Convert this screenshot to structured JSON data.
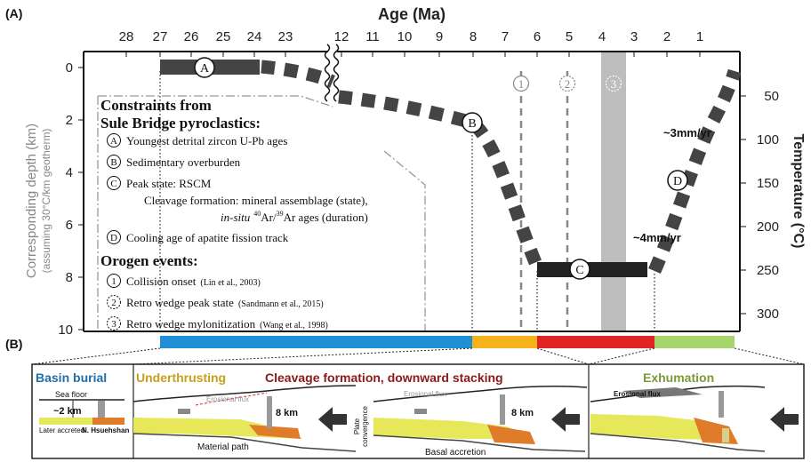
{
  "panel_a": {
    "label": "(A)",
    "top_axis_title": "Age (Ma)",
    "top_ticks_left": [
      "28",
      "27",
      "26",
      "25",
      "24",
      "23"
    ],
    "top_ticks_right": [
      "12",
      "11",
      "10",
      "9",
      "8",
      "7",
      "6",
      "5",
      "4",
      "3",
      "2",
      "1"
    ],
    "left_axis_title_line1": "Corresponding depth (km)",
    "left_axis_title_line2": "(assuming 30°C/km geotherm)",
    "left_ticks": [
      "0",
      "2",
      "4",
      "6",
      "8",
      "10"
    ],
    "right_axis_title": "Temperature (°C)",
    "right_ticks": [
      "50",
      "100",
      "150",
      "200",
      "250",
      "300"
    ],
    "rate_labels": [
      "~3mm/yr",
      "~4mm/yr"
    ],
    "point_labels": [
      "A",
      "B",
      "C",
      "D"
    ],
    "event_markers": [
      "1",
      "2",
      "3"
    ],
    "constraints_title_line1": "Constraints from",
    "constraints_title_line2": "Sule Bridge pyroclastics:",
    "constraints": [
      {
        "id": "A",
        "text": "Youngest detrital zircon U-Pb ages"
      },
      {
        "id": "B",
        "text": "Sedimentary  overburden"
      },
      {
        "id": "C",
        "text": "Peak state: RSCM"
      }
    ],
    "cleavage_line1": "Cleavage formation: mineral assemblage (state),",
    "cleavage_line2_italic": "in-situ",
    "cleavage_line2_rest": "Ar/",
    "cleavage_line2_iso1": "40",
    "cleavage_line2_iso2": "39",
    "cleavage_line2_end": "Ar ages (duration)",
    "constraint_d": {
      "id": "D",
      "text": "Cooling age of apatite fission track"
    },
    "orogen_title": "Orogen events:",
    "orogen_events": [
      {
        "id": "1",
        "text": "Collision onset",
        "ref": "(Lin et al., 2003)"
      },
      {
        "id": "2",
        "text": "Retro wedge peak state",
        "ref": "(Sandmann et al., 2015)"
      },
      {
        "id": "3",
        "text": "Retro wedge mylonitization",
        "ref": "(Wang et al., 1998)"
      }
    ],
    "colors": {
      "basin": "#1f8fd6",
      "under": "#f5b21a",
      "cleavage": "#e02424",
      "exhum": "#a6d66b",
      "band": "#bdbdbd",
      "path": "#4a4a4a"
    }
  },
  "panel_b": {
    "label": "(B)",
    "stage_titles": [
      "Basin burial",
      "Underthrusting",
      "Cleavage formation, downward stacking",
      "Exhumation"
    ],
    "stage_colors": [
      "#1f6fa8",
      "#c9a01a",
      "#8b1a1a",
      "#7a9a3a"
    ],
    "sea_floor": "Sea floor",
    "depth_2km": "~2 km",
    "later_accreted": "Later accreted",
    "n_hsuehshan": "N. Hsuehshan",
    "erosional_flux": "Erosional flux",
    "depth_8km": "8 km",
    "material_path": "Material path",
    "plate_convergence_1": "Plate",
    "plate_convergence_2": "convergence",
    "basal_accretion": "Basal accretion"
  }
}
